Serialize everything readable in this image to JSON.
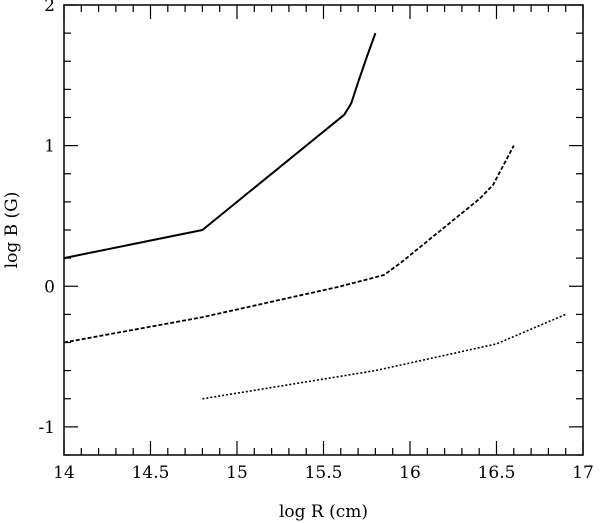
{
  "chart_data": {
    "type": "line",
    "xlabel": "log R (cm)",
    "ylabel": "log B (G)",
    "xlim": [
      14,
      17
    ],
    "ylim": [
      -1.2,
      2
    ],
    "grid": false,
    "xticks": [
      14,
      14.5,
      15,
      15.5,
      16,
      16.5,
      17
    ],
    "xtick_labels": [
      "14",
      "14.5",
      "15",
      "15.5",
      "16",
      "16.5",
      "17"
    ],
    "yticks": [
      -1,
      0,
      1,
      2
    ],
    "ytick_labels": [
      "-1",
      "0",
      "1",
      "2"
    ],
    "series": [
      {
        "style": "solid",
        "x": [
          14.0,
          14.8,
          15.62,
          15.66,
          15.7,
          15.75,
          15.8
        ],
        "y": [
          0.2,
          0.4,
          1.22,
          1.3,
          1.45,
          1.63,
          1.8
        ]
      },
      {
        "style": "dashed",
        "x": [
          14.0,
          14.8,
          15.6,
          15.85,
          15.95,
          16.4,
          16.48,
          16.54,
          16.6
        ],
        "y": [
          -0.4,
          -0.22,
          0.0,
          0.08,
          0.17,
          0.62,
          0.72,
          0.86,
          1.0
        ]
      },
      {
        "style": "dotted",
        "x": [
          14.8,
          15.8,
          16.5,
          16.9
        ],
        "y": [
          -0.8,
          -0.6,
          -0.41,
          -0.2
        ]
      }
    ]
  }
}
